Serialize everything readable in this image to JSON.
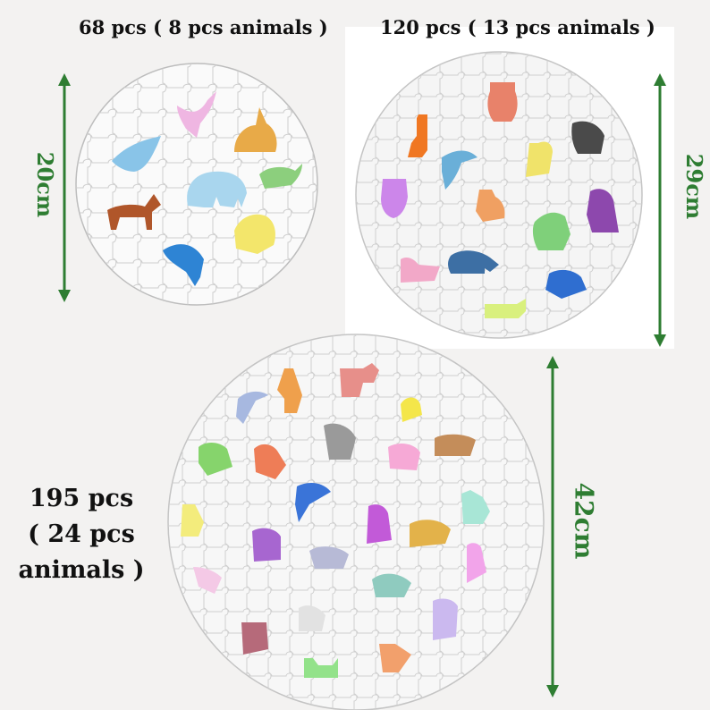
{
  "puzzles": [
    {
      "id": "small",
      "label": "68 pcs ( 8 pcs animals )",
      "dimension": "20cm"
    },
    {
      "id": "medium",
      "label": "120 pcs ( 13 pcs animals )",
      "dimension": "29cm"
    },
    {
      "id": "large",
      "label_lines": [
        "195 pcs",
        "( 24 pcs",
        "animals )"
      ],
      "dimension": "42cm"
    }
  ],
  "colors": {
    "arrow": "#2e7d32",
    "puzzle_fill": "#f7f7f7",
    "puzzle_stroke": "#c9c9c9"
  }
}
